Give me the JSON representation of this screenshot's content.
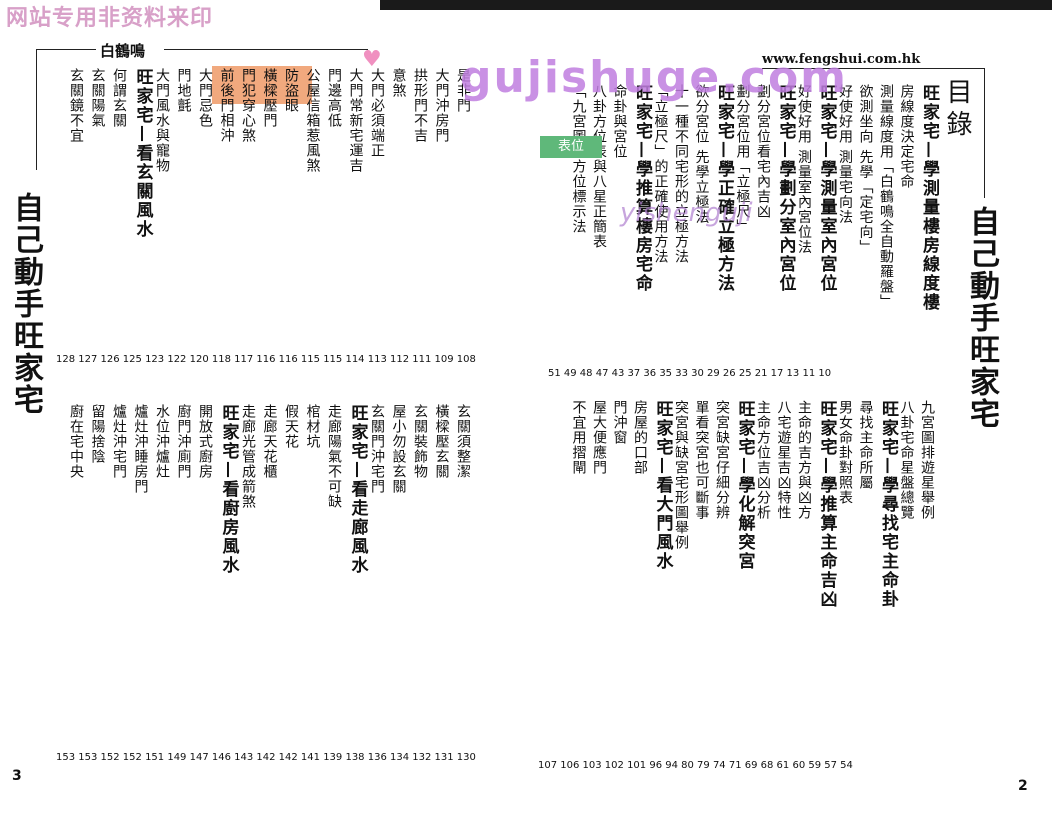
{
  "watermark": {
    "top_left": "网站专用非资料来印",
    "site": "gujishuge.com",
    "site2": "yishenguji",
    "green_tag": "表位"
  },
  "header": {
    "brand": "白鶴鳴",
    "url": "www.fengshui.com.hk"
  },
  "book_title": "自己動手旺家宅",
  "toc_heading": "目錄",
  "right_top": {
    "entries": [
      "旺家宅—學測量樓房線度樓",
      "房線度決定宅命",
      "測量線度用「白鶴鳴全自動羅盤」",
      "欲測坐向 先學「定宅向」",
      "好使好用 測量宅向法",
      "旺家宅—學測量室內宮位",
      "好使好用 測量室內宮位法",
      "旺家宅—學劃分室內宮位",
      "劃分宮位看宅內吉凶",
      "劃分宮位用「立極尺」",
      "旺家宅—學正確立極方法",
      "欲分宮位 先學立極法",
      "十一種不同宅形的立極方法",
      "「立極尺」的正確使用方法",
      "旺家宅—學推算樓房宅命",
      "命卦與宮位",
      "八卦方位表與八星正簡表",
      "「九宮圖」方位標示法"
    ],
    "pages": "51 49 48 47 43 37 36 35 33 30 29 26 25 21 17 13 11 10"
  },
  "right_bottom": {
    "entries": [
      "九宮圖排遊星舉例",
      "八卦宅命星盤總覽",
      "旺家宅—學尋找宅主命卦",
      "尋找主命所屬",
      "男女命卦對照表",
      "旺家宅—學推算主命吉凶",
      "主命的吉方與凶方",
      "八宅遊星吉凶特性",
      "主命方位吉凶分析",
      "旺家宅—學化解突宮",
      "突宮缺宮仔細分辨",
      "單看突宮也可斷事",
      "突宮與缺宮宅形圖舉例",
      "旺家宅—看大門風水",
      "房屋的口部",
      "門沖窗",
      "屋大便應門",
      "不宜用摺閘"
    ],
    "pages": "107 106 103 102 101 96 94 80 79 74 71 69 68 61 60 59 57 54"
  },
  "left_top": {
    "entries": [
      "是非門",
      "大門沖房門",
      "拱形門不吉",
      "意煞",
      "大門必須端正",
      "大門常新宅運吉",
      "門邊高低",
      "公屋信箱惹風煞",
      "防盜眼",
      "橫樑壓門",
      "門犯穿心煞",
      "前後門相沖",
      "大門忌色",
      "門地氈",
      "大門風水與寵物",
      "旺家宅—看玄關風水",
      "何謂玄關",
      "玄關陽氣",
      "玄關鏡不宜"
    ],
    "pages": "128 127 126 125 123 122 120 118 117 116 116 115 115 114 113 112 111 109 108"
  },
  "left_bottom": {
    "entries": [
      "玄關須整潔",
      "橫樑壓玄關",
      "玄關裝飾物",
      "屋小勿設玄關",
      "玄關門沖宅門",
      "旺家宅—看走廊風水",
      "走廊陽氣不可缺",
      "棺材坑",
      "假天花",
      "走廊天花櫃",
      "走廊光管成箭煞",
      "旺家宅—看廚房風水",
      "開放式廚房",
      "廚門沖廁門",
      "水位沖爐灶",
      "爐灶沖睡房門",
      "爐灶沖宅門",
      "留陽捨陰",
      "廚在宅中央"
    ],
    "pages": "153 153 152 152 151 149 147 146 143 142 142 141 139 138 136 134 132 131 130"
  },
  "page_numbers": {
    "left": "3",
    "right": "2"
  }
}
